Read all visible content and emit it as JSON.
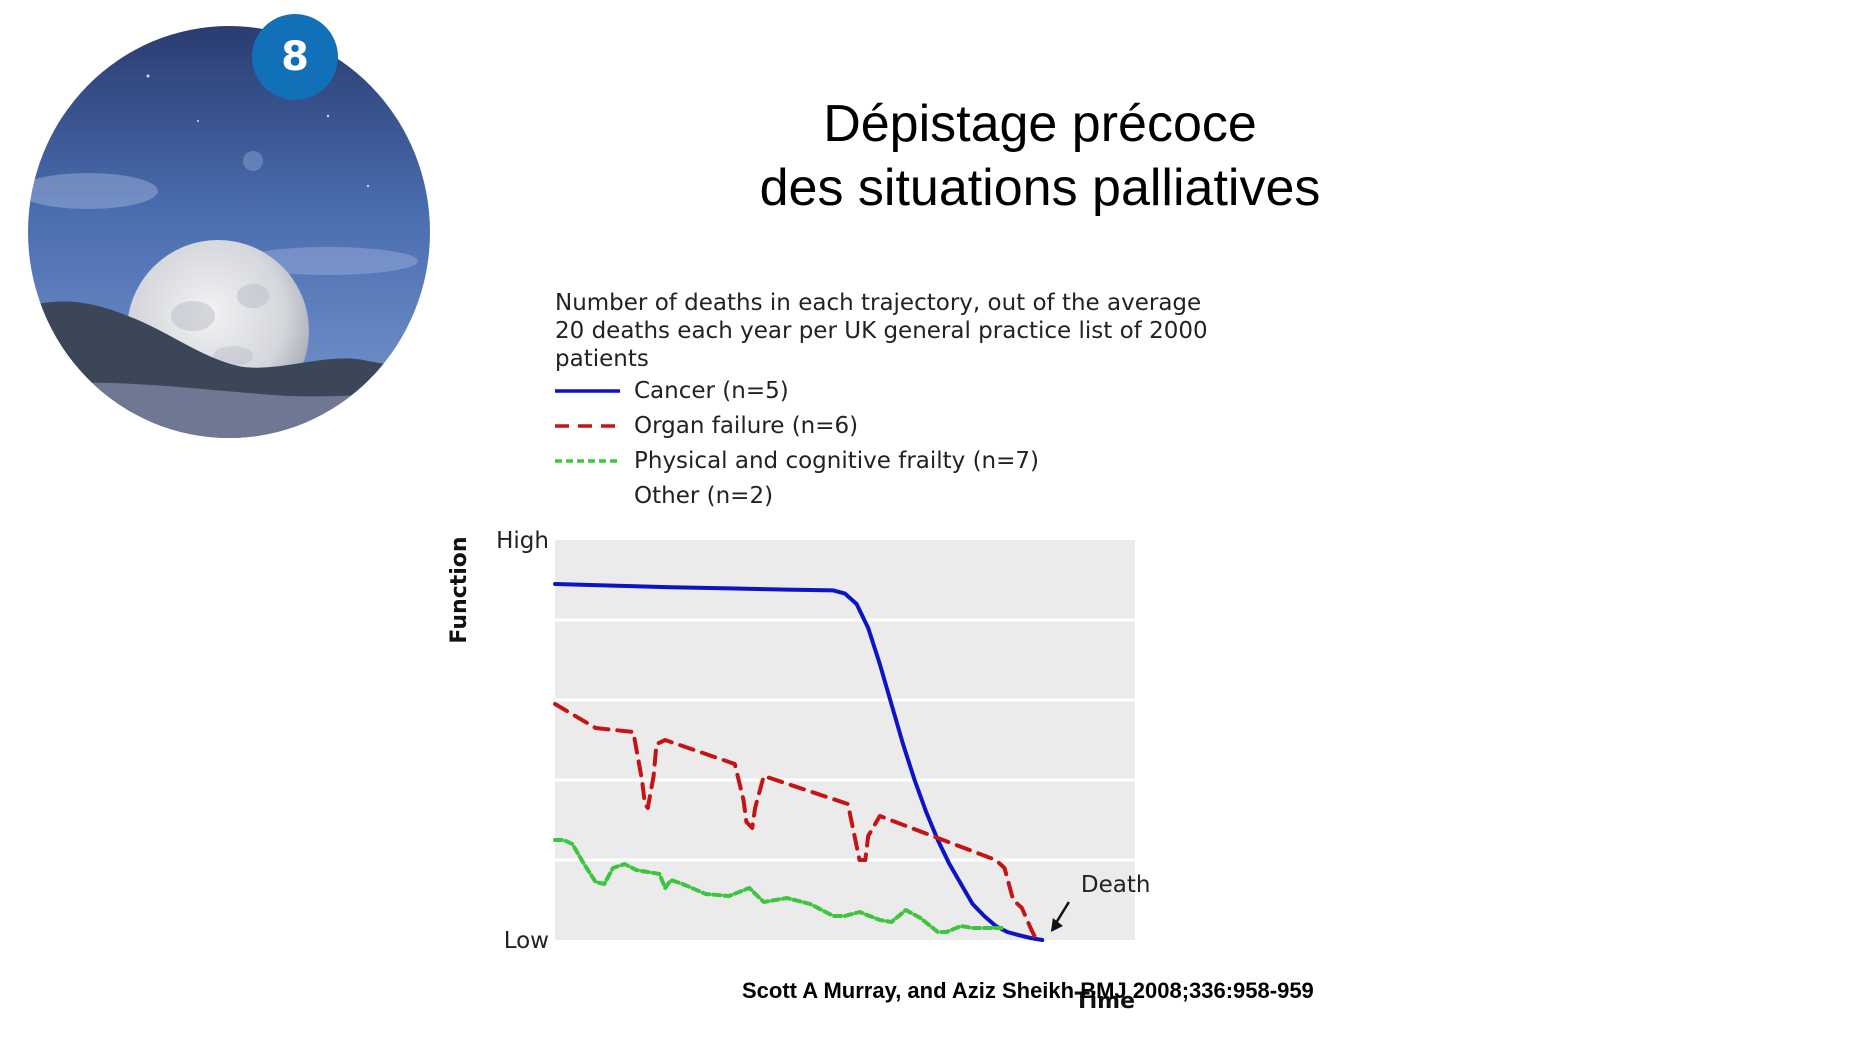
{
  "slide": {
    "number": "8",
    "title_line1": "Dépistage précoce",
    "title_line2": "des situations palliatives",
    "citation": "Scott A Murray, and Aziz Sheikh BMJ 2008;336:958-959"
  },
  "chart_data": {
    "type": "line",
    "title": "Number of deaths in each trajectory, out of the average 20 deaths each year per UK general practice list of 2000 patients",
    "title_lines": [
      "Number of deaths in each trajectory, out of the average",
      "20 deaths each year per UK general practice list of 2000",
      "patients"
    ],
    "xlabel": "Time",
    "ylabel": "Function",
    "y_ticks": [
      "High",
      "Low"
    ],
    "xlim": [
      0,
      100
    ],
    "ylim": [
      0,
      100
    ],
    "grid": true,
    "annotation": "Death",
    "legend": [
      {
        "label": "Cancer (n=5)",
        "color": "#0d14c4",
        "style": "solid"
      },
      {
        "label": "Organ failure (n=6)",
        "color": "#c61414",
        "style": "dashed"
      },
      {
        "label": "Physical and cognitive frailty (n=7)",
        "color": "#3ec43e",
        "style": "dotted"
      },
      {
        "label": "Other (n=2)",
        "color": "",
        "style": "none"
      }
    ],
    "series": [
      {
        "name": "Cancer (n=5)",
        "color": "#0d14c4",
        "x": [
          0,
          10,
          20,
          30,
          40,
          48,
          50,
          52,
          54,
          56,
          58,
          60,
          62,
          64,
          66,
          68,
          70,
          72,
          74,
          76,
          78,
          80,
          82,
          84
        ],
        "y": [
          89,
          88.6,
          88.2,
          87.9,
          87.6,
          87.4,
          86.6,
          84,
          78,
          69,
          59,
          49,
          40,
          32,
          25,
          19,
          14,
          9,
          6,
          3.5,
          2,
          1.2,
          0.5,
          0
        ]
      },
      {
        "name": "Organ failure (n=6)",
        "color": "#c61414",
        "x": [
          0,
          7,
          13.5,
          15,
          15.5,
          16,
          17,
          17.5,
          19,
          31,
          32.5,
          33,
          34,
          34.5,
          36,
          50.5,
          52,
          52.5,
          53.5,
          54,
          56,
          76,
          77.5,
          79,
          80.5,
          82,
          83
        ],
        "y": [
          59,
          53,
          52,
          40,
          34,
          33,
          41,
          49,
          50,
          44,
          35,
          29.5,
          28,
          33,
          41,
          34,
          23.5,
          20,
          20,
          26,
          31,
          20,
          18,
          10,
          8,
          3,
          0
        ]
      },
      {
        "name": "Physical and cognitive frailty (n=7)",
        "color": "#3ec43e",
        "x": [
          0,
          1.5,
          3,
          5,
          7,
          8.5,
          10,
          12,
          14,
          16,
          18,
          19,
          20,
          22,
          26,
          30,
          33.5,
          36,
          40,
          44,
          48,
          50,
          52.5,
          56,
          58,
          60.5,
          63,
          66,
          67.5,
          70,
          72,
          75,
          77
        ],
        "y": [
          25,
          25,
          24,
          19,
          14.5,
          14,
          18,
          19,
          17.5,
          17,
          16.5,
          13,
          15,
          14,
          11.5,
          11,
          13,
          9.5,
          10.5,
          9,
          6,
          6,
          7,
          5,
          4.5,
          7.5,
          5.5,
          2,
          2,
          3.5,
          3,
          3,
          3
        ]
      }
    ]
  }
}
